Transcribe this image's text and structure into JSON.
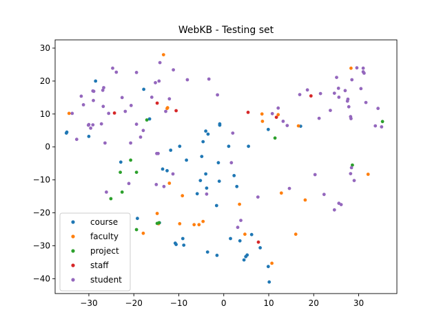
{
  "chart_data": {
    "type": "scatter",
    "title": "WebKB - Testing set",
    "xlabel": "",
    "ylabel": "",
    "xlim": [
      -37.5,
      38.5
    ],
    "ylim": [
      -44.5,
      32.5
    ],
    "xticks": [
      -30,
      -20,
      -10,
      0,
      10,
      20,
      30
    ],
    "yticks": [
      -40,
      -30,
      -20,
      -10,
      0,
      10,
      20,
      30
    ],
    "grid": false,
    "legend_position": "lower-left",
    "series": [
      {
        "name": "course",
        "color": "#1f77b4",
        "points": [
          [
            -34.9,
            4.5
          ],
          [
            -35.0,
            4.2
          ],
          [
            -28.5,
            20.0
          ],
          [
            -30.0,
            3.2
          ],
          [
            -17.8,
            17.5
          ],
          [
            -16.5,
            8.5
          ],
          [
            -11.8,
            -1.0
          ],
          [
            -9.8,
            0.2
          ],
          [
            -13.6,
            -6.7
          ],
          [
            -12.6,
            -7.2
          ],
          [
            -8.3,
            -4.0
          ],
          [
            -4.0,
            4.8
          ],
          [
            -3.5,
            3.9
          ],
          [
            -4.6,
            1.6
          ],
          [
            -0.9,
            7.0
          ],
          [
            -0.9,
            6.6
          ],
          [
            1.1,
            0.2
          ],
          [
            5.5,
            0.2
          ],
          [
            9.9,
            5.3
          ],
          [
            17.1,
            6.3
          ],
          [
            -1.2,
            -4.8
          ],
          [
            -4.9,
            -2.9
          ],
          [
            -4.0,
            -8.2
          ],
          [
            -5.2,
            -10.2
          ],
          [
            -3.8,
            -12.5
          ],
          [
            -1.0,
            -10.4
          ],
          [
            2.3,
            -8.7
          ],
          [
            2.9,
            -12.0
          ],
          [
            -5.9,
            -14.2
          ],
          [
            -1.6,
            -17.8
          ],
          [
            -19.2,
            -21.7
          ],
          [
            -14.3,
            -23.0
          ],
          [
            -10.8,
            -29.2
          ],
          [
            -10.6,
            -29.6
          ],
          [
            -9.1,
            -27.8
          ],
          [
            -8.9,
            -29.8
          ],
          [
            -3.6,
            -31.9
          ],
          [
            -1.5,
            -32.9
          ],
          [
            1.5,
            -27.8
          ],
          [
            3.6,
            -28.5
          ],
          [
            4.9,
            -33.3
          ],
          [
            5.2,
            -32.8
          ],
          [
            4.5,
            -34.3
          ],
          [
            6.2,
            -26.6
          ],
          [
            8.1,
            -30.6
          ],
          [
            9.9,
            -36.3
          ],
          [
            10.1,
            -41.0
          ],
          [
            -22.9,
            -4.6
          ]
        ]
      },
      {
        "name": "faculty",
        "color": "#ff7f0e",
        "points": [
          [
            -34.4,
            10.2
          ],
          [
            -12.5,
            11.9
          ],
          [
            -12.6,
            11.7
          ],
          [
            -13.4,
            28.0
          ],
          [
            8.5,
            10.0
          ],
          [
            8.6,
            7.8
          ],
          [
            12.1,
            9.8
          ],
          [
            16.6,
            6.4
          ],
          [
            28.3,
            23.9
          ],
          [
            32.1,
            -8.3
          ],
          [
            -12.1,
            -11.0
          ],
          [
            -9.2,
            -14.8
          ],
          [
            12.8,
            -14.0
          ],
          [
            18.1,
            -16.1
          ],
          [
            -14.8,
            -20.2
          ],
          [
            -14.5,
            -23.3
          ],
          [
            -17.9,
            -26.2
          ],
          [
            -9.8,
            -23.3
          ],
          [
            -6.6,
            -23.6
          ],
          [
            -5.5,
            -23.6
          ],
          [
            -4.6,
            -22.6
          ],
          [
            3.5,
            -17.4
          ],
          [
            4.7,
            -26.5
          ],
          [
            10.7,
            -35.3
          ],
          [
            16.0,
            -26.5
          ]
        ]
      },
      {
        "name": "project",
        "color": "#2ca02c",
        "points": [
          [
            -17.1,
            8.2
          ],
          [
            -20.7,
            -4.0
          ],
          [
            -23.0,
            -7.7
          ],
          [
            -19.4,
            -7.7
          ],
          [
            -22.6,
            -13.7
          ],
          [
            -25.1,
            -15.7
          ],
          [
            -14.8,
            -23.2
          ],
          [
            -14.4,
            -23.0
          ],
          [
            -19.4,
            -25.1
          ],
          [
            11.4,
            2.7
          ],
          [
            35.3,
            7.7
          ],
          [
            28.6,
            -5.5
          ]
        ]
      },
      {
        "name": "staff",
        "color": "#d62728",
        "points": [
          [
            -24.3,
            10.3
          ],
          [
            -14.8,
            13.3
          ],
          [
            -10.6,
            11.0
          ],
          [
            5.4,
            10.5
          ],
          [
            11.7,
            9.0
          ],
          [
            19.4,
            15.5
          ],
          [
            7.7,
            -28.9
          ]
        ]
      },
      {
        "name": "student",
        "color": "#9467bd",
        "points": [
          [
            -23.9,
            22.7
          ],
          [
            -24.7,
            23.9
          ],
          [
            -26.9,
            17.2
          ],
          [
            -28.9,
            16.9
          ],
          [
            -29.1,
            17.0
          ],
          [
            -26.7,
            18.0
          ],
          [
            -31.7,
            15.4
          ],
          [
            -31.2,
            12.8
          ],
          [
            -29.0,
            14.1
          ],
          [
            -33.7,
            10.2
          ],
          [
            -30.1,
            6.6
          ],
          [
            -30.0,
            6.8
          ],
          [
            -29.1,
            6.7
          ],
          [
            -29.6,
            5.7
          ],
          [
            -27.2,
            7.0
          ],
          [
            -26.8,
            12.3
          ],
          [
            -25.6,
            10.2
          ],
          [
            -22.6,
            15.0
          ],
          [
            -21.9,
            10.8
          ],
          [
            -20.6,
            12.6
          ],
          [
            -19.4,
            22.6
          ],
          [
            -15.2,
            19.5
          ],
          [
            -14.4,
            20.0
          ],
          [
            -14.2,
            25.6
          ],
          [
            -11.2,
            23.4
          ],
          [
            -18.5,
            3.0
          ],
          [
            -19.4,
            6.9
          ],
          [
            -17.9,
            5.0
          ],
          [
            -20.7,
            1.2
          ],
          [
            -14.6,
            -2.0
          ],
          [
            -14.9,
            -2.0
          ],
          [
            -16.0,
            15.1
          ],
          [
            -12.9,
            10.8
          ],
          [
            -12.1,
            14.6
          ],
          [
            -8.1,
            20.4
          ],
          [
            -3.3,
            20.6
          ],
          [
            -1.4,
            15.8
          ],
          [
            2.0,
            4.2
          ],
          [
            -26.4,
            1.2
          ],
          [
            -32.7,
            2.3
          ],
          [
            -15.0,
            -11.4
          ],
          [
            -13.3,
            -12.0
          ],
          [
            -11.3,
            -8.2
          ],
          [
            -3.8,
            -14.3
          ],
          [
            1.7,
            -4.8
          ],
          [
            -26.1,
            -13.7
          ],
          [
            -21.1,
            -11.1
          ],
          [
            3.1,
            -24.4
          ],
          [
            3.8,
            -22.3
          ],
          [
            7.6,
            -15.2
          ],
          [
            13.2,
            7.8
          ],
          [
            12.1,
            11.8
          ],
          [
            14.1,
            6.5
          ],
          [
            10.8,
            10.1
          ],
          [
            16.9,
            15.9
          ],
          [
            18.6,
            17.3
          ],
          [
            21.5,
            16.2
          ],
          [
            21.2,
            8.7
          ],
          [
            23.7,
            11.1
          ],
          [
            24.6,
            16.3
          ],
          [
            25.1,
            21.1
          ],
          [
            25.6,
            15.1
          ],
          [
            25.5,
            17.8
          ],
          [
            27.0,
            17.1
          ],
          [
            27.6,
            14.5
          ],
          [
            27.8,
            12.2
          ],
          [
            28.2,
            9.2
          ],
          [
            28.3,
            8.6
          ],
          [
            27.5,
            13.9
          ],
          [
            28.5,
            20.4
          ],
          [
            29.6,
            24.0
          ],
          [
            31.0,
            23.9
          ],
          [
            31.0,
            22.8
          ],
          [
            31.2,
            22.4
          ],
          [
            30.5,
            17.7
          ],
          [
            31.6,
            13.5
          ],
          [
            33.7,
            6.4
          ],
          [
            34.3,
            11.7
          ],
          [
            35.1,
            6.1
          ],
          [
            28.4,
            -6.3
          ],
          [
            28.2,
            -8.1
          ],
          [
            29.0,
            -10.2
          ],
          [
            22.3,
            -14.4
          ],
          [
            20.3,
            -8.4
          ],
          [
            24.6,
            -19.1
          ],
          [
            25.6,
            -17.1
          ],
          [
            26.1,
            -17.5
          ],
          [
            14.6,
            -12.6
          ]
        ]
      }
    ]
  }
}
